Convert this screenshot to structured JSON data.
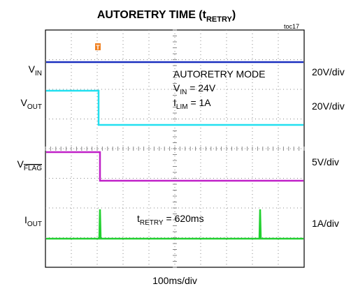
{
  "title": {
    "main": "AUTORETRY TIME (t",
    "sub": "RETRY",
    "end": ")"
  },
  "figure_id": "toc17",
  "trigger": "T",
  "left_labels": [
    {
      "main": "V",
      "sub": "IN"
    },
    {
      "main": "V",
      "sub": "OUT"
    },
    {
      "main": "V",
      "sub": "FLAG"
    },
    {
      "main": "I",
      "sub": "OUT"
    }
  ],
  "right_labels": [
    "20V/div",
    "20V/div",
    "5V/div",
    "1A/div"
  ],
  "annotations": {
    "mode": "AUTORETRY MODE",
    "vin": {
      "main": "V",
      "sub": "IN",
      "end": " = 24V"
    },
    "ilim": {
      "main": "I",
      "sub": "LIM",
      "end": " = 1A"
    },
    "tretry": {
      "main": "t",
      "sub": "RETRY",
      "end": " = 620ms"
    }
  },
  "time_scale": "100ms/div"
}
